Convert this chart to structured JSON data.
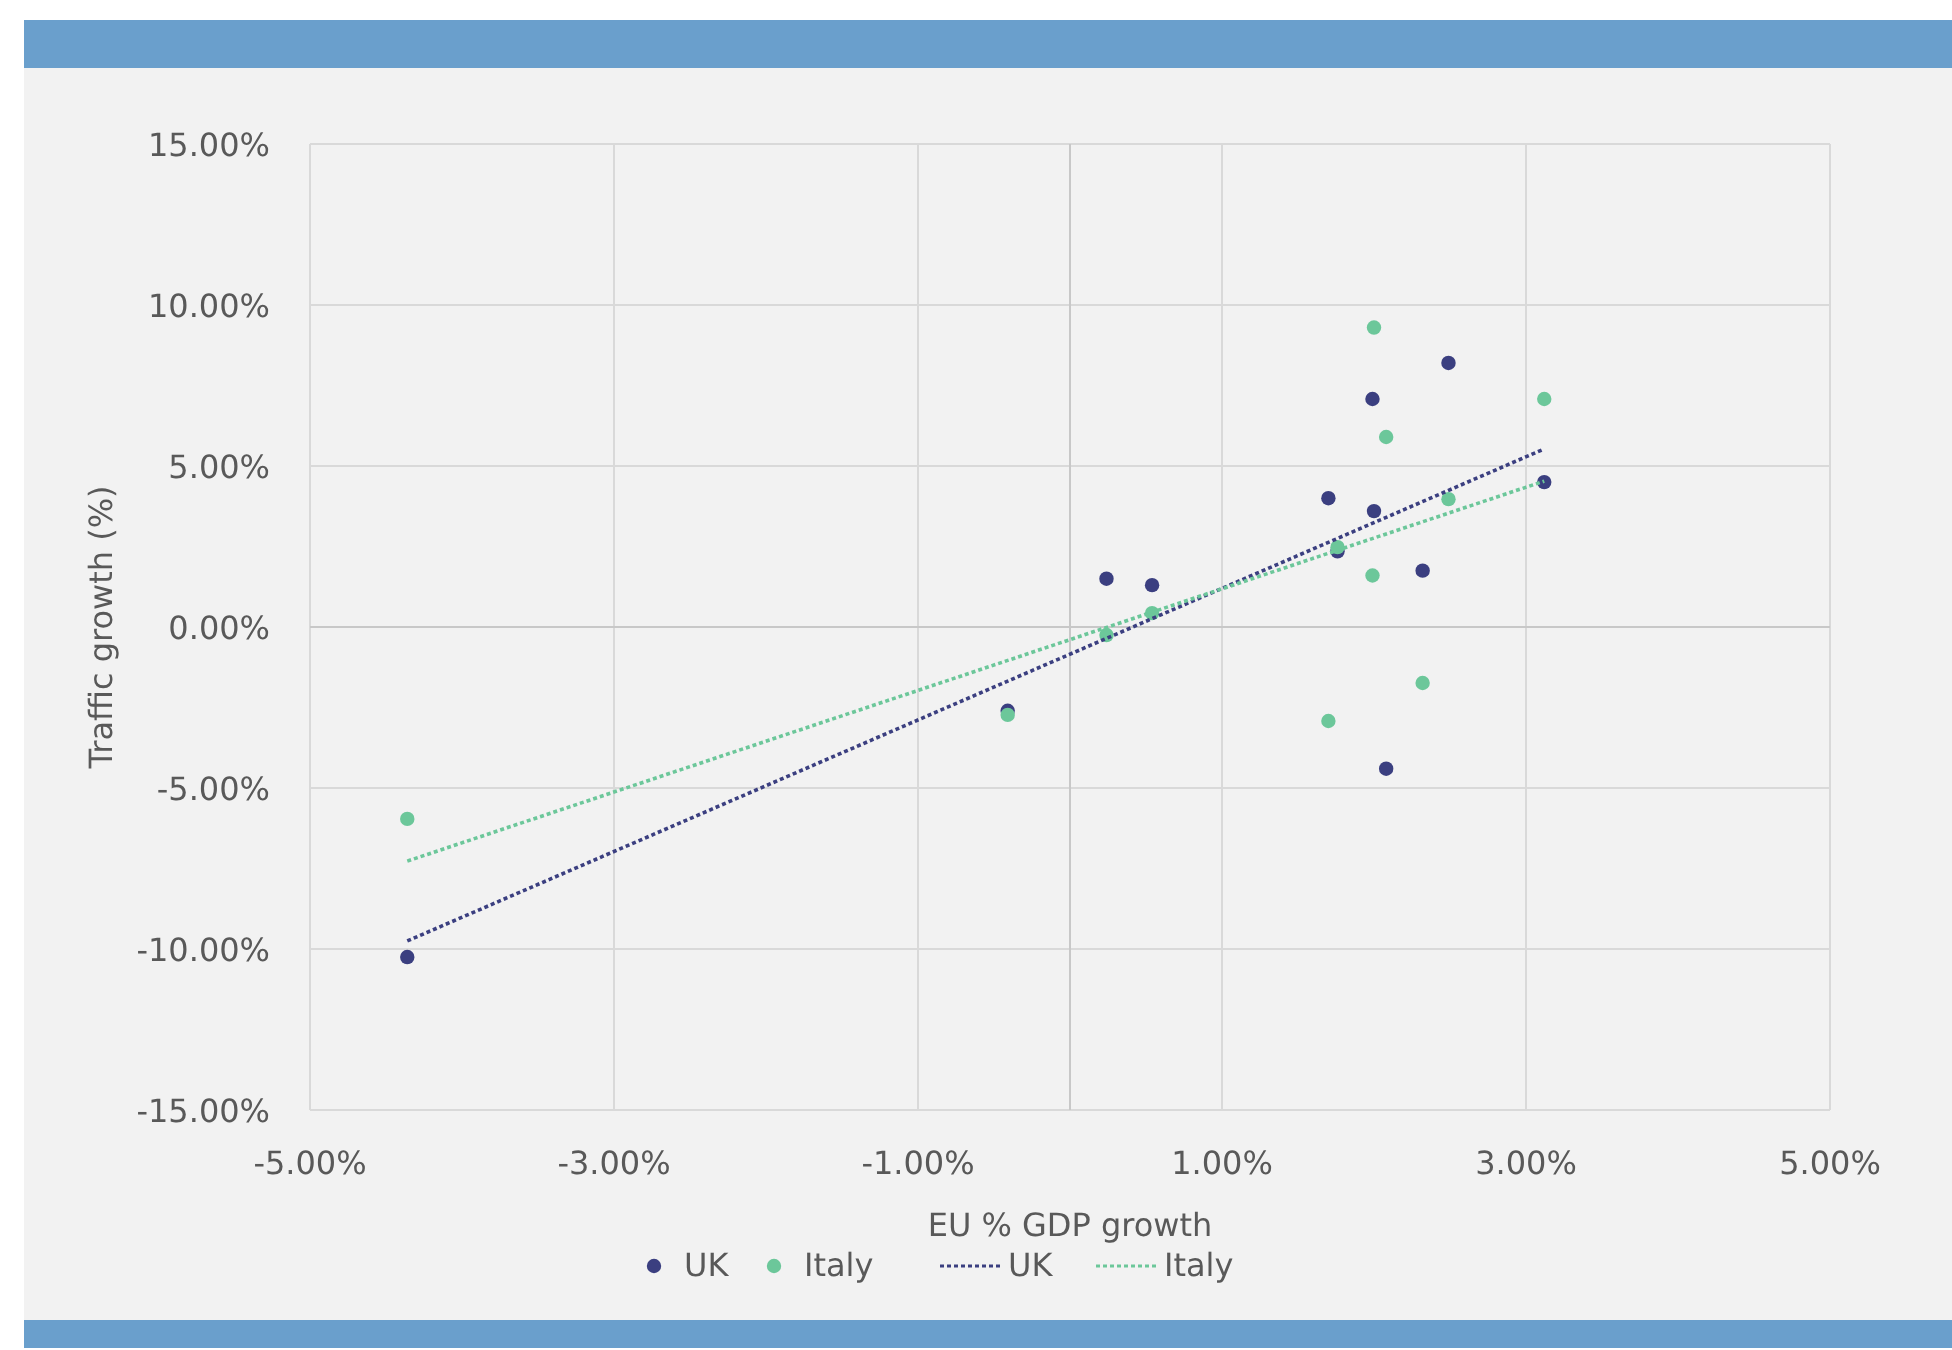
{
  "chart_data": {
    "type": "scatter",
    "xlabel": "EU % GDP growth",
    "ylabel": "Traffic growth (%)",
    "xlim": [
      -5,
      5
    ],
    "ylim": [
      -15,
      15
    ],
    "xticks": [
      {
        "value": -5,
        "label": "-5.00%"
      },
      {
        "value": -3,
        "label": "-3.00%"
      },
      {
        "value": -1,
        "label": "-1.00%"
      },
      {
        "value": 1,
        "label": "1.00%"
      },
      {
        "value": 3,
        "label": "3.00%"
      },
      {
        "value": 5,
        "label": "5.00%"
      }
    ],
    "yticks": [
      {
        "value": -15,
        "label": "-15.00%"
      },
      {
        "value": -10,
        "label": "-10.00%"
      },
      {
        "value": -5,
        "label": "-5.00%"
      },
      {
        "value": 0,
        "label": "0.00%"
      },
      {
        "value": 5,
        "label": "5.00%"
      },
      {
        "value": 10,
        "label": "10.00%"
      },
      {
        "value": 15,
        "label": "15.00%"
      }
    ],
    "grid": true,
    "legend": "bottom",
    "series": [
      {
        "name": "UK",
        "marker": "circle",
        "color": "#3b3f80",
        "x": [
          -4.36,
          -0.41,
          0.24,
          0.54,
          1.7,
          1.76,
          1.99,
          2.0,
          2.08,
          2.32,
          2.49,
          3.12
        ],
        "values": [
          -10.25,
          -2.6,
          1.5,
          1.3,
          4.0,
          2.35,
          7.08,
          3.6,
          -4.4,
          1.75,
          8.2,
          4.5
        ]
      },
      {
        "name": "Italy",
        "marker": "circle",
        "color": "#6cc79a",
        "x": [
          -4.36,
          -0.41,
          0.24,
          0.54,
          1.7,
          1.76,
          1.99,
          2.0,
          2.08,
          2.32,
          2.49,
          3.12
        ],
        "values": [
          -5.96,
          -2.73,
          -0.25,
          0.43,
          -2.92,
          2.48,
          1.6,
          9.3,
          5.9,
          -1.74,
          3.97,
          7.08
        ]
      },
      {
        "name": "UK",
        "type": "line",
        "line_style": "dotted",
        "marker": "none",
        "color": "#3b3f80",
        "x": [
          -4.36,
          3.12
        ],
        "values": [
          -9.75,
          5.53
        ]
      },
      {
        "name": "Italy",
        "type": "line",
        "line_style": "dotted",
        "marker": "none",
        "color": "#6cc79a",
        "x": [
          -4.36,
          3.12
        ],
        "values": [
          -7.27,
          4.53
        ]
      }
    ]
  }
}
